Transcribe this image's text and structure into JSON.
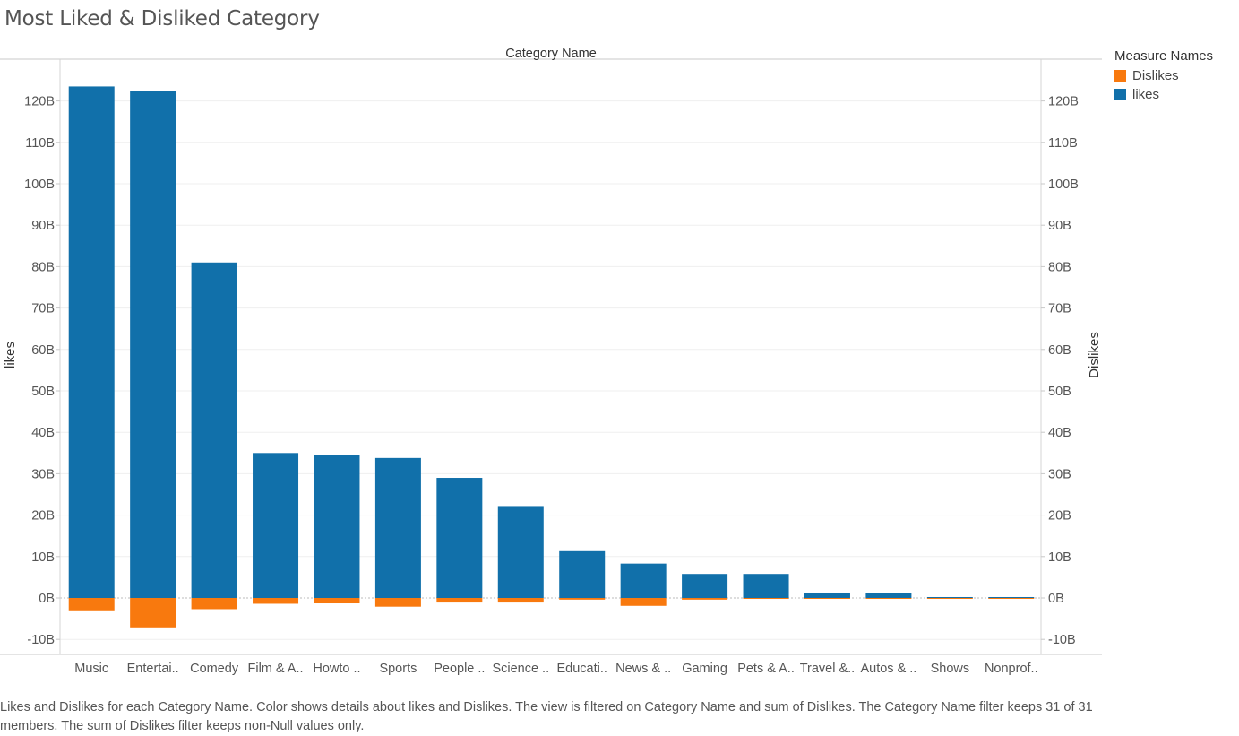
{
  "title": "Most Liked & Disliked Category",
  "caption": "Likes and Dislikes for each Category Name.  Color shows details about likes and Dislikes. The view is filtered on Category Name and sum of Dislikes. The Category Name filter keeps 31 of 31 members. The sum of Dislikes filter keeps non-Null values only.",
  "legend": {
    "title": "Measure Names",
    "items": [
      {
        "label": "Dislikes",
        "color": "#f8790e"
      },
      {
        "label": "likes",
        "color": "#1170aa"
      }
    ]
  },
  "colors": {
    "likes": "#1170aa",
    "dislikes": "#f8790e"
  },
  "chart_data": {
    "type": "bar",
    "title": "Most Liked & Disliked Category",
    "column_header": "Category Name",
    "ylabel_left": "likes",
    "ylabel_right": "Dislikes",
    "ylim": [
      -12,
      129
    ],
    "y_ticks": [
      -10,
      0,
      10,
      20,
      30,
      40,
      50,
      60,
      70,
      80,
      90,
      100,
      110,
      120
    ],
    "y_tick_labels": [
      "-10B",
      "0B",
      "10B",
      "20B",
      "30B",
      "40B",
      "50B",
      "60B",
      "70B",
      "80B",
      "90B",
      "100B",
      "110B",
      "120B"
    ],
    "unit": "B",
    "categories": [
      "Music",
      "Entertai..",
      "Comedy",
      "Film & A..",
      "Howto ..",
      "Sports",
      "People ..",
      "Science ..",
      "Educati..",
      "News & ..",
      "Gaming",
      "Pets & A..",
      "Travel &..",
      "Autos & ..",
      "Shows",
      "Nonprof.."
    ],
    "series": [
      {
        "name": "likes",
        "values": [
          123.5,
          122.5,
          81,
          35,
          34.5,
          33.8,
          29,
          22.2,
          11.3,
          8.3,
          5.8,
          5.8,
          1.3,
          1.1,
          0.1,
          0.1
        ]
      },
      {
        "name": "Dislikes",
        "values": [
          -3.2,
          -7.1,
          -2.7,
          -1.4,
          -1.3,
          -2.1,
          -1.1,
          -1.1,
          -0.4,
          -1.9,
          -0.4,
          -0.1,
          -0.1,
          -0.1,
          -0.1,
          -0.1
        ]
      }
    ],
    "grid": true,
    "legend_position": "right"
  }
}
